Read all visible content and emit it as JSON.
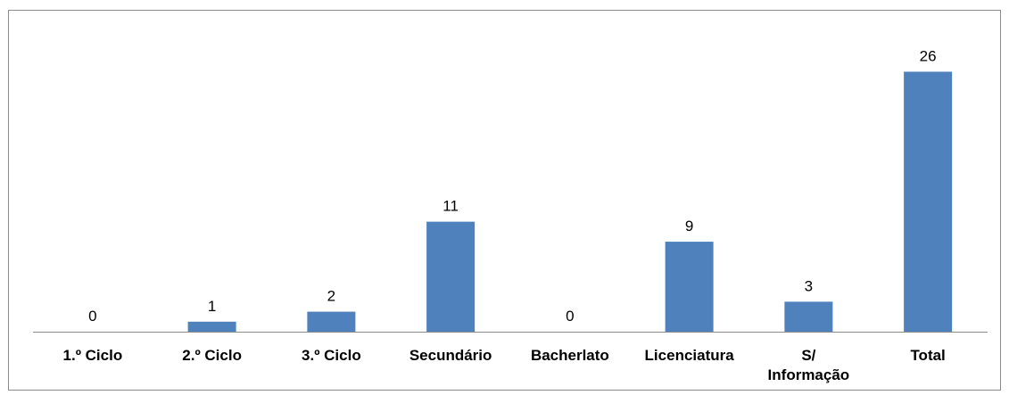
{
  "chart_data": {
    "type": "bar",
    "categories": [
      [
        "1.º Ciclo"
      ],
      [
        "2.º Ciclo"
      ],
      [
        "3.º Ciclo"
      ],
      [
        "Secundário"
      ],
      [
        "Bacherlato"
      ],
      [
        "Licenciatura"
      ],
      [
        "S/",
        "Informação"
      ],
      [
        "Total"
      ]
    ],
    "values": [
      0,
      1,
      2,
      11,
      0,
      9,
      3,
      26
    ],
    "ylim": [
      0,
      28
    ],
    "bar_color": "#4f81bd",
    "grid": false,
    "legend": "none"
  }
}
